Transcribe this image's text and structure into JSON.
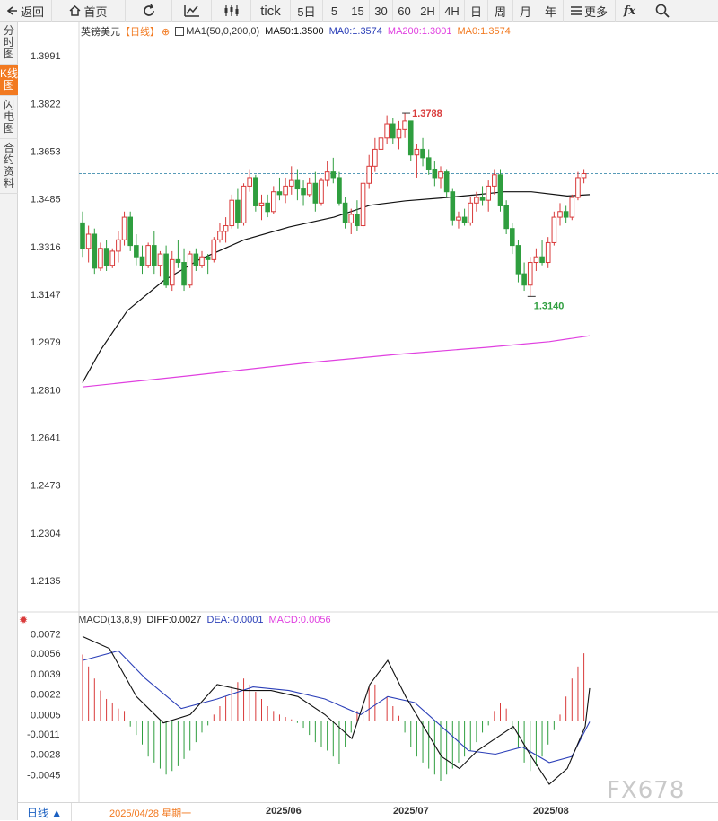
{
  "toolbar": {
    "back_label": "返回",
    "home_label": "首页",
    "tick_label": "tick",
    "periods": [
      "5日",
      "5",
      "15",
      "30",
      "60",
      "2H",
      "4H",
      "日",
      "周",
      "月",
      "年"
    ],
    "more_label": "更多",
    "fx_label": "fx"
  },
  "sidebar": {
    "tabs": [
      {
        "label": "分时图",
        "active": false
      },
      {
        "label": "K线图",
        "active": true
      },
      {
        "label": "闪电图",
        "active": false
      },
      {
        "label": "合约资料",
        "active": false
      }
    ]
  },
  "main_legend": {
    "symbol": "英镑美元",
    "period": "【日线】",
    "ma1": "MA1(50,0,200,0)",
    "ma50": "MA50:1.3500",
    "ma0": "MA0:1.3574",
    "ma200": "MA200:1.3001",
    "ma0b": "MA0:1.3574"
  },
  "macd_legend": {
    "name": "MACD(13,8,9)",
    "diff": "DIFF:0.0027",
    "dea": "DEA:-0.0001",
    "macd": "MACD:0.0056"
  },
  "annotations": {
    "high_label": "1.3788",
    "low_label": "1.3140"
  },
  "bottom": {
    "period_label": "日线 ▲",
    "cursor_date": "2025/04/28 星期一",
    "months": [
      "2025/06",
      "2025/07",
      "2025/08"
    ]
  },
  "watermark": "FX678",
  "colors": {
    "up": "#d93a3a",
    "down": "#2f9e3f",
    "ma50": "#111111",
    "ma200": "#e040e0",
    "dea": "#2b3fb8",
    "accent": "#f27a21",
    "ref_line": "#1f7aa0"
  },
  "chart_data": [
    {
      "type": "candlestick",
      "title": "英镑美元 日线",
      "y_ticks": [
        1.3991,
        1.3822,
        1.3653,
        1.3485,
        1.3316,
        1.3147,
        1.2979,
        1.281,
        1.2641,
        1.2473,
        1.2304,
        1.2135
      ],
      "ylim": [
        1.205,
        1.408
      ],
      "current_price_line": 1.3574,
      "x_month_labels": [
        "2025/06",
        "2025/07",
        "2025/08"
      ],
      "candles_ohlc": [
        [
          1.34,
          1.344,
          1.328,
          1.331
        ],
        [
          1.331,
          1.339,
          1.326,
          1.336
        ],
        [
          1.336,
          1.338,
          1.322,
          1.324
        ],
        [
          1.324,
          1.333,
          1.323,
          1.331
        ],
        [
          1.331,
          1.334,
          1.323,
          1.325
        ],
        [
          1.325,
          1.331,
          1.324,
          1.33
        ],
        [
          1.33,
          1.337,
          1.326,
          1.334
        ],
        [
          1.334,
          1.344,
          1.332,
          1.342
        ],
        [
          1.342,
          1.344,
          1.33,
          1.332
        ],
        [
          1.332,
          1.336,
          1.325,
          1.328
        ],
        [
          1.328,
          1.332,
          1.322,
          1.325
        ],
        [
          1.325,
          1.333,
          1.324,
          1.332
        ],
        [
          1.332,
          1.337,
          1.322,
          1.325
        ],
        [
          1.325,
          1.33,
          1.321,
          1.329
        ],
        [
          1.329,
          1.332,
          1.317,
          1.318
        ],
        [
          1.318,
          1.33,
          1.316,
          1.327
        ],
        [
          1.327,
          1.334,
          1.324,
          1.326
        ],
        [
          1.326,
          1.331,
          1.316,
          1.318
        ],
        [
          1.318,
          1.33,
          1.317,
          1.329
        ],
        [
          1.329,
          1.331,
          1.323,
          1.325
        ],
        [
          1.325,
          1.33,
          1.324,
          1.328
        ],
        [
          1.328,
          1.329,
          1.322,
          1.327
        ],
        [
          1.327,
          1.335,
          1.326,
          1.334
        ],
        [
          1.334,
          1.34,
          1.333,
          1.337
        ],
        [
          1.337,
          1.342,
          1.333,
          1.339
        ],
        [
          1.339,
          1.35,
          1.338,
          1.348
        ],
        [
          1.348,
          1.352,
          1.338,
          1.34
        ],
        [
          1.34,
          1.354,
          1.339,
          1.353
        ],
        [
          1.353,
          1.359,
          1.351,
          1.356
        ],
        [
          1.356,
          1.357,
          1.344,
          1.346
        ],
        [
          1.346,
          1.35,
          1.341,
          1.347
        ],
        [
          1.347,
          1.35,
          1.342,
          1.344
        ],
        [
          1.344,
          1.353,
          1.343,
          1.351
        ],
        [
          1.351,
          1.356,
          1.348,
          1.35
        ],
        [
          1.35,
          1.356,
          1.347,
          1.353
        ],
        [
          1.353,
          1.36,
          1.35,
          1.355
        ],
        [
          1.355,
          1.359,
          1.348,
          1.352
        ],
        [
          1.352,
          1.355,
          1.346,
          1.35
        ],
        [
          1.35,
          1.356,
          1.349,
          1.354
        ],
        [
          1.354,
          1.358,
          1.344,
          1.347
        ],
        [
          1.347,
          1.356,
          1.346,
          1.355
        ],
        [
          1.355,
          1.362,
          1.353,
          1.358
        ],
        [
          1.358,
          1.363,
          1.354,
          1.356
        ],
        [
          1.356,
          1.358,
          1.346,
          1.347
        ],
        [
          1.347,
          1.349,
          1.338,
          1.34
        ],
        [
          1.34,
          1.345,
          1.336,
          1.343
        ],
        [
          1.343,
          1.348,
          1.337,
          1.339
        ],
        [
          1.339,
          1.356,
          1.338,
          1.354
        ],
        [
          1.354,
          1.364,
          1.352,
          1.36
        ],
        [
          1.36,
          1.37,
          1.358,
          1.366
        ],
        [
          1.366,
          1.374,
          1.364,
          1.37
        ],
        [
          1.37,
          1.378,
          1.368,
          1.375
        ],
        [
          1.375,
          1.377,
          1.368,
          1.37
        ],
        [
          1.37,
          1.376,
          1.366,
          1.373
        ],
        [
          1.373,
          1.3788,
          1.37,
          1.376
        ],
        [
          1.376,
          1.376,
          1.362,
          1.364
        ],
        [
          1.364,
          1.368,
          1.356,
          1.366
        ],
        [
          1.366,
          1.37,
          1.36,
          1.363
        ],
        [
          1.363,
          1.366,
          1.357,
          1.359
        ],
        [
          1.359,
          1.362,
          1.353,
          1.356
        ],
        [
          1.356,
          1.36,
          1.352,
          1.358
        ],
        [
          1.358,
          1.359,
          1.349,
          1.351
        ],
        [
          1.351,
          1.352,
          1.339,
          1.341
        ],
        [
          1.341,
          1.344,
          1.338,
          1.342
        ],
        [
          1.342,
          1.345,
          1.339,
          1.34
        ],
        [
          1.34,
          1.349,
          1.339,
          1.347
        ],
        [
          1.347,
          1.351,
          1.344,
          1.349
        ],
        [
          1.349,
          1.353,
          1.346,
          1.348
        ],
        [
          1.348,
          1.355,
          1.344,
          1.353
        ],
        [
          1.353,
          1.359,
          1.35,
          1.357
        ],
        [
          1.357,
          1.359,
          1.344,
          1.346
        ],
        [
          1.346,
          1.348,
          1.336,
          1.338
        ],
        [
          1.338,
          1.34,
          1.329,
          1.332
        ],
        [
          1.332,
          1.334,
          1.319,
          1.322
        ],
        [
          1.322,
          1.326,
          1.316,
          1.318
        ],
        [
          1.318,
          1.328,
          1.314,
          1.326
        ],
        [
          1.326,
          1.331,
          1.323,
          1.328
        ],
        [
          1.328,
          1.334,
          1.325,
          1.326
        ],
        [
          1.326,
          1.335,
          1.324,
          1.333
        ],
        [
          1.333,
          1.344,
          1.332,
          1.342
        ],
        [
          1.342,
          1.347,
          1.339,
          1.344
        ],
        [
          1.344,
          1.346,
          1.34,
          1.342
        ],
        [
          1.342,
          1.35,
          1.341,
          1.349
        ],
        [
          1.349,
          1.358,
          1.348,
          1.356
        ],
        [
          1.356,
          1.359,
          1.354,
          1.3574
        ]
      ],
      "ma50": [
        [
          0,
          1.2835
        ],
        [
          20,
          1.295
        ],
        [
          50,
          1.309
        ],
        [
          90,
          1.3195
        ],
        [
          130,
          1.327
        ],
        [
          180,
          1.334
        ],
        [
          230,
          1.3385
        ],
        [
          280,
          1.342
        ],
        [
          320,
          1.3462
        ],
        [
          360,
          1.3478
        ],
        [
          400,
          1.3488
        ],
        [
          440,
          1.35
        ],
        [
          470,
          1.351
        ],
        [
          500,
          1.351
        ],
        [
          540,
          1.3495
        ],
        [
          565,
          1.35
        ]
      ],
      "ma200": [
        [
          0,
          1.282
        ],
        [
          120,
          1.286
        ],
        [
          250,
          1.2905
        ],
        [
          350,
          1.2935
        ],
        [
          450,
          1.296
        ],
        [
          520,
          1.298
        ],
        [
          565,
          1.3001
        ]
      ]
    },
    {
      "type": "macd",
      "y_ticks": [
        0.0072,
        0.0056,
        0.0039,
        0.0022,
        0.0005,
        -0.0011,
        -0.0028,
        -0.0045
      ],
      "ylim": [
        -0.0062,
        0.008
      ],
      "histogram": [
        0.0055,
        0.0045,
        0.0035,
        0.0025,
        0.0018,
        0.0015,
        0.001,
        0.0008,
        -0.0005,
        -0.0012,
        -0.002,
        -0.003,
        -0.0035,
        -0.004,
        -0.0045,
        -0.0042,
        -0.0038,
        -0.0032,
        -0.0025,
        -0.0018,
        -0.001,
        -0.0004,
        0.0005,
        0.0012,
        0.002,
        0.0028,
        0.0032,
        0.0035,
        0.003,
        0.0024,
        0.0018,
        0.0012,
        0.0008,
        0.0005,
        0.0003,
        0.0001,
        -0.0002,
        -0.0006,
        -0.0012,
        -0.0018,
        -0.0022,
        -0.0025,
        -0.003,
        -0.0036,
        -0.0022,
        -0.001,
        0.0008,
        0.002,
        0.0028,
        0.003,
        0.0026,
        0.002,
        0.0012,
        0.0004,
        -0.001,
        -0.0022,
        -0.003,
        -0.0035,
        -0.004,
        -0.0045,
        -0.005,
        -0.0045,
        -0.004,
        -0.0035,
        -0.003,
        -0.0025,
        -0.0018,
        -0.001,
        -0.0004,
        0.0008,
        0.0015,
        0.001,
        -0.0008,
        -0.0022,
        -0.0035,
        -0.0042,
        -0.0038,
        -0.003,
        -0.002,
        -0.0008,
        0.0005,
        0.002,
        0.0035,
        0.0045,
        0.0056
      ],
      "diff": [
        [
          0,
          0.007
        ],
        [
          30,
          0.006
        ],
        [
          60,
          0.002
        ],
        [
          90,
          -0.0002
        ],
        [
          120,
          0.0005
        ],
        [
          150,
          0.003
        ],
        [
          180,
          0.0025
        ],
        [
          210,
          0.0025
        ],
        [
          240,
          0.002
        ],
        [
          270,
          0.0005
        ],
        [
          300,
          -0.0015
        ],
        [
          320,
          0.003
        ],
        [
          340,
          0.005
        ],
        [
          360,
          0.002
        ],
        [
          380,
          -0.0005
        ],
        [
          400,
          -0.003
        ],
        [
          420,
          -0.004
        ],
        [
          440,
          -0.0025
        ],
        [
          460,
          -0.0015
        ],
        [
          480,
          -0.0005
        ],
        [
          500,
          -0.003
        ],
        [
          520,
          -0.0053
        ],
        [
          540,
          -0.004
        ],
        [
          560,
          -0.0005
        ],
        [
          565,
          0.0027
        ]
      ],
      "dea": [
        [
          0,
          0.005
        ],
        [
          40,
          0.0058
        ],
        [
          70,
          0.0035
        ],
        [
          110,
          0.001
        ],
        [
          150,
          0.0018
        ],
        [
          190,
          0.0028
        ],
        [
          230,
          0.0025
        ],
        [
          270,
          0.0018
        ],
        [
          310,
          0.0005
        ],
        [
          340,
          0.002
        ],
        [
          370,
          0.0015
        ],
        [
          400,
          -0.0005
        ],
        [
          430,
          -0.0025
        ],
        [
          460,
          -0.0028
        ],
        [
          490,
          -0.0022
        ],
        [
          520,
          -0.0035
        ],
        [
          545,
          -0.003
        ],
        [
          565,
          -0.0001
        ]
      ]
    }
  ]
}
